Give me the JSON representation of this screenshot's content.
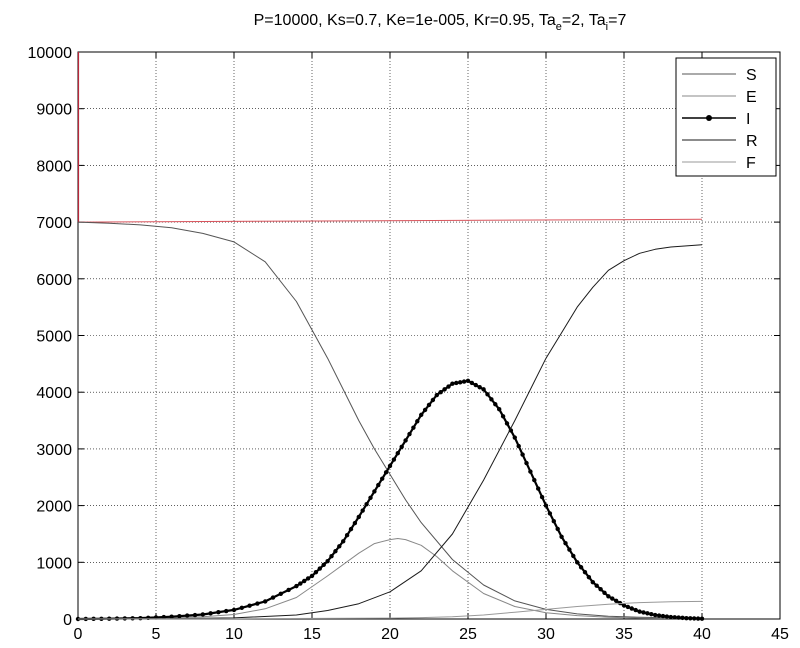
{
  "chart_data": {
    "type": "line",
    "title": {
      "parts": [
        {
          "text": "P=10000, Ks=0.7, Ke=1e-005, Kr=0.95, Ta"
        },
        {
          "text": "e",
          "sub": true
        },
        {
          "text": "=2, Ta"
        },
        {
          "text": "i",
          "sub": true
        },
        {
          "text": "=7"
        }
      ]
    },
    "xlim": [
      0,
      45
    ],
    "ylim": [
      0,
      10000
    ],
    "xticks": [
      0,
      5,
      10,
      15,
      20,
      25,
      30,
      35,
      40,
      45
    ],
    "yticks": [
      0,
      1000,
      2000,
      3000,
      4000,
      5000,
      6000,
      7000,
      8000,
      9000,
      10000
    ],
    "grid": true,
    "legend_position": "top-right",
    "series": [
      {
        "name": "S",
        "color": "#555555",
        "marker": "none",
        "x": [
          0,
          2,
          4,
          6,
          8,
          10,
          12,
          14,
          16,
          18,
          19,
          20,
          21,
          22,
          24,
          26,
          28,
          30,
          32,
          34,
          36,
          38,
          40
        ],
        "y": [
          7000,
          6980,
          6950,
          6900,
          6800,
          6650,
          6300,
          5600,
          4600,
          3500,
          3000,
          2550,
          2100,
          1700,
          1050,
          600,
          320,
          170,
          90,
          50,
          30,
          20,
          15
        ]
      },
      {
        "name": "E",
        "color": "#888888",
        "marker": "none",
        "x": [
          0,
          4,
          8,
          10,
          12,
          14,
          16,
          18,
          19,
          20,
          20.5,
          21,
          22,
          23,
          24,
          26,
          28,
          30,
          32,
          34,
          36,
          38,
          40
        ],
        "y": [
          0,
          10,
          40,
          80,
          180,
          380,
          760,
          1160,
          1330,
          1400,
          1420,
          1400,
          1300,
          1100,
          850,
          450,
          220,
          110,
          60,
          30,
          15,
          8,
          5
        ]
      },
      {
        "name": "I",
        "color": "#000000",
        "marker": "dot",
        "x": [
          0,
          2,
          4,
          6,
          8,
          10,
          12,
          14,
          15,
          16,
          17,
          18,
          19,
          20,
          21,
          22,
          23,
          24,
          25,
          26,
          27,
          28,
          29,
          30,
          31,
          32,
          33,
          34,
          35,
          36,
          37,
          38,
          39,
          40
        ],
        "y": [
          0,
          5,
          15,
          40,
          80,
          160,
          310,
          580,
          760,
          1020,
          1370,
          1800,
          2250,
          2700,
          3150,
          3600,
          3950,
          4150,
          4200,
          4050,
          3700,
          3200,
          2600,
          2000,
          1450,
          1000,
          650,
          400,
          240,
          130,
          70,
          35,
          15,
          5
        ]
      },
      {
        "name": "R",
        "color": "#1a1a1a",
        "marker": "none",
        "x": [
          0,
          5,
          10,
          14,
          16,
          18,
          20,
          22,
          24,
          26,
          28,
          30,
          31,
          32,
          33,
          34,
          35,
          36,
          37,
          38,
          39,
          40
        ],
        "y": [
          0,
          5,
          20,
          70,
          150,
          270,
          480,
          850,
          1500,
          2450,
          3500,
          4600,
          5050,
          5500,
          5850,
          6150,
          6320,
          6450,
          6520,
          6560,
          6580,
          6600
        ]
      },
      {
        "name": "F",
        "color": "#999999",
        "marker": "none",
        "x": [
          0,
          10,
          20,
          22,
          24,
          26,
          28,
          30,
          32,
          34,
          36,
          38,
          40
        ],
        "y": [
          0,
          5,
          15,
          25,
          40,
          70,
          120,
          170,
          220,
          260,
          290,
          305,
          310
        ]
      }
    ],
    "ref_line": {
      "y": 7000,
      "x_end": 40,
      "y_end": 7050,
      "color": "#d9535b"
    },
    "left_ref_line": {
      "x": 0,
      "from": 7000,
      "to": 10000,
      "color": "#b9273a"
    }
  }
}
